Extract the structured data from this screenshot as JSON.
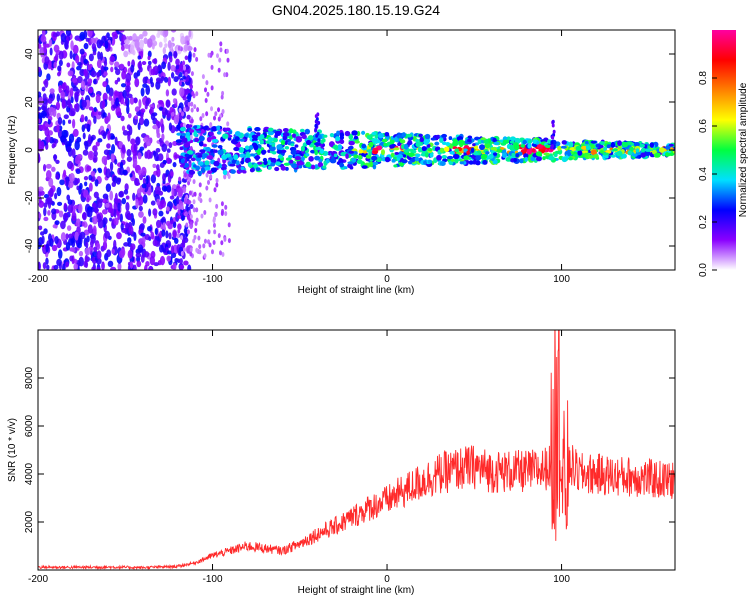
{
  "title": "GN04.2025.180.15.19.G24",
  "chart_data": [
    {
      "type": "heatmap",
      "title": "GN04.2025.180.15.19.G24",
      "xlabel": "Height of straight line (km)",
      "ylabel": "Frequency (Hz)",
      "xlim": [
        -200,
        165
      ],
      "ylim": [
        -50,
        50
      ],
      "xticks": [
        "-200",
        "-100",
        "0",
        "100"
      ],
      "yticks": [
        "-40",
        "-20",
        "0",
        "20",
        "40"
      ],
      "colorbar": {
        "label": "Normalized spectral amplitude",
        "range": [
          0,
          1
        ],
        "ticks": [
          "0.0",
          "0.2",
          "0.4",
          "0.6",
          "0.8"
        ],
        "colors": [
          "#ffffff",
          "#8a00ff",
          "#0000ff",
          "#00e0ff",
          "#00ff40",
          "#ffff00",
          "#ff8000",
          "#ff0000",
          "#ff00a0"
        ]
      },
      "features": {
        "noise_region_x": [
          -200,
          -120
        ],
        "signal_band_center_hz": 0,
        "transition_x": -120,
        "peak_amplitude_near_x": [
          75,
          95
        ]
      }
    },
    {
      "type": "line",
      "xlabel": "Height of straight line (km)",
      "ylabel": "SNR (10 * v/v)",
      "xlim": [
        -200,
        165
      ],
      "ylim": [
        0,
        10000
      ],
      "xticks": [
        "-200",
        "-100",
        "0",
        "100"
      ],
      "yticks": [
        "2000",
        "4000",
        "6000",
        "8000"
      ],
      "color": "#ff2a2a",
      "x": [
        -200,
        -180,
        -160,
        -140,
        -120,
        -110,
        -100,
        -90,
        -80,
        -70,
        -60,
        -50,
        -40,
        -30,
        -20,
        -10,
        0,
        10,
        20,
        30,
        40,
        50,
        60,
        70,
        80,
        90,
        95,
        98,
        100,
        105,
        110,
        120,
        130,
        140,
        150,
        165
      ],
      "y": [
        120,
        110,
        120,
        100,
        150,
        300,
        600,
        800,
        1000,
        900,
        800,
        1100,
        1500,
        1800,
        2200,
        2600,
        2900,
        3300,
        3700,
        4000,
        4200,
        4300,
        4100,
        4100,
        4100,
        4200,
        4400,
        9800,
        3200,
        4400,
        4000,
        4000,
        3900,
        3900,
        3800,
        3700
      ]
    }
  ]
}
